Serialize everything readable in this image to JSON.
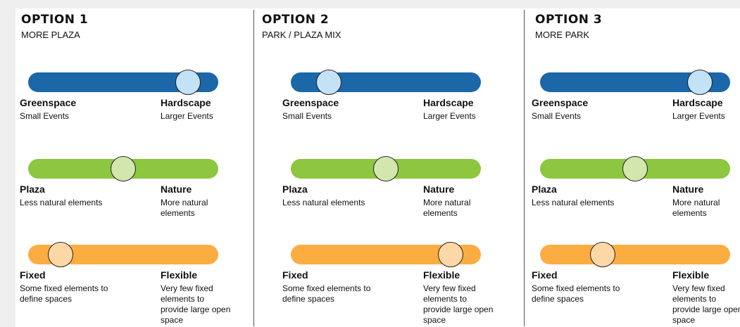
{
  "options": [
    {
      "title": "OPTION 1",
      "subtitle": "MORE PLAZA",
      "sliders": [
        {
          "left": {
            "label": "Greenspace",
            "desc": "Small Events"
          },
          "right": {
            "label": "Hardscape",
            "desc": "Larger Events"
          }
        },
        {
          "left": {
            "label": "Plaza",
            "desc": "Less natural elements"
          },
          "right": {
            "label": "Nature",
            "desc": "More natural elements"
          }
        },
        {
          "left": {
            "label": "Fixed",
            "desc": "Some fixed elements to define spaces"
          },
          "right": {
            "label": "Flexible",
            "desc": "Very few fixed elements to provide large open space"
          }
        }
      ]
    },
    {
      "title": "OPTION 2",
      "subtitle": "PARK / PLAZA MIX",
      "sliders": [
        {
          "left": {
            "label": "Greenspace",
            "desc": "Small Events"
          },
          "right": {
            "label": "Hardscape",
            "desc": "Larger Events"
          }
        },
        {
          "left": {
            "label": "Plaza",
            "desc": "Less natural elements"
          },
          "right": {
            "label": "Nature",
            "desc": "More natural elements"
          }
        },
        {
          "left": {
            "label": "Fixed",
            "desc": "Some fixed elements to define spaces"
          },
          "right": {
            "label": "Flexible",
            "desc": "Very few fixed elements to provide large open space"
          }
        }
      ]
    },
    {
      "title": "OPTION 3",
      "subtitle": "MORE PARK",
      "sliders": [
        {
          "left": {
            "label": "Greenspace",
            "desc": "Small Events"
          },
          "right": {
            "label": "Hardscape",
            "desc": "Larger Events"
          }
        },
        {
          "left": {
            "label": "Plaza",
            "desc": "Less natural elements"
          },
          "right": {
            "label": "Nature",
            "desc": "More natural elements"
          }
        },
        {
          "left": {
            "label": "Fixed",
            "desc": "Some fixed elements to define spaces"
          },
          "right": {
            "label": "Flexible",
            "desc": "Very few fixed elements to provide large open space"
          }
        }
      ]
    }
  ]
}
